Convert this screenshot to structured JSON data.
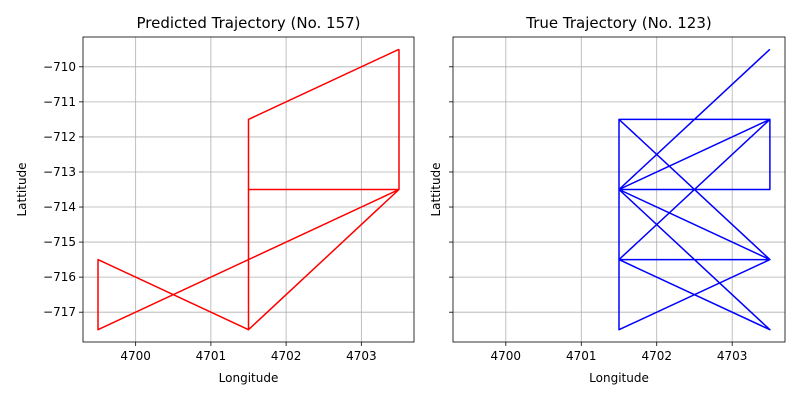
{
  "chart_data": [
    {
      "type": "line",
      "title": "Predicted Trajectory (No. 157)",
      "xlabel": "Longitude",
      "ylabel": "Lattitude",
      "xlim": [
        4699.3,
        4703.7
      ],
      "ylim": [
        -717.85,
        -709.15
      ],
      "xticks": [
        4700,
        4701,
        4702,
        4703
      ],
      "yticks": [
        -717,
        -716,
        -715,
        -714,
        -713,
        -712,
        -711,
        -710
      ],
      "grid": true,
      "color": "#ff0000",
      "series": [
        {
          "x": [
            4703.5,
            4703.5,
            4701.5,
            4701.5,
            4703.5,
            4699.5,
            4699.5,
            4701.5,
            4701.5,
            4703.5
          ],
          "y": [
            -709.5,
            -713.5,
            -713.5,
            -717.5,
            -713.5,
            -717.5,
            -715.5,
            -717.5,
            -711.5,
            -709.5
          ]
        }
      ]
    },
    {
      "type": "line",
      "title": "True Trajectory (No. 123)",
      "xlabel": "Longitude",
      "ylabel": "Lattitude",
      "xlim": [
        4699.3,
        4703.7
      ],
      "ylim": [
        -717.85,
        -709.15
      ],
      "xticks": [
        4700,
        4701,
        4702,
        4703
      ],
      "yticks": [
        -717,
        -716,
        -715,
        -714,
        -713,
        -712,
        -711,
        -710
      ],
      "grid": true,
      "color": "#0000ff",
      "series": [
        {
          "x": [
            4703.5,
            4701.5,
            4703.5,
            4701.5,
            4701.5,
            4703.5,
            4703.5,
            4701.5,
            4703.5,
            4701.5,
            4703.5,
            4701.5,
            4701.5,
            4703.5,
            4701.5,
            4703.5,
            4703.5,
            4701.5
          ],
          "y": [
            -709.5,
            -713.5,
            -711.5,
            -711.5,
            -713.5,
            -713.5,
            -711.5,
            -713.5,
            -711.5,
            -715.5,
            -715.5,
            -717.5,
            -711.5,
            -715.5,
            -713.5,
            -717.5,
            -717.5,
            -715.5
          ]
        }
      ]
    }
  ]
}
